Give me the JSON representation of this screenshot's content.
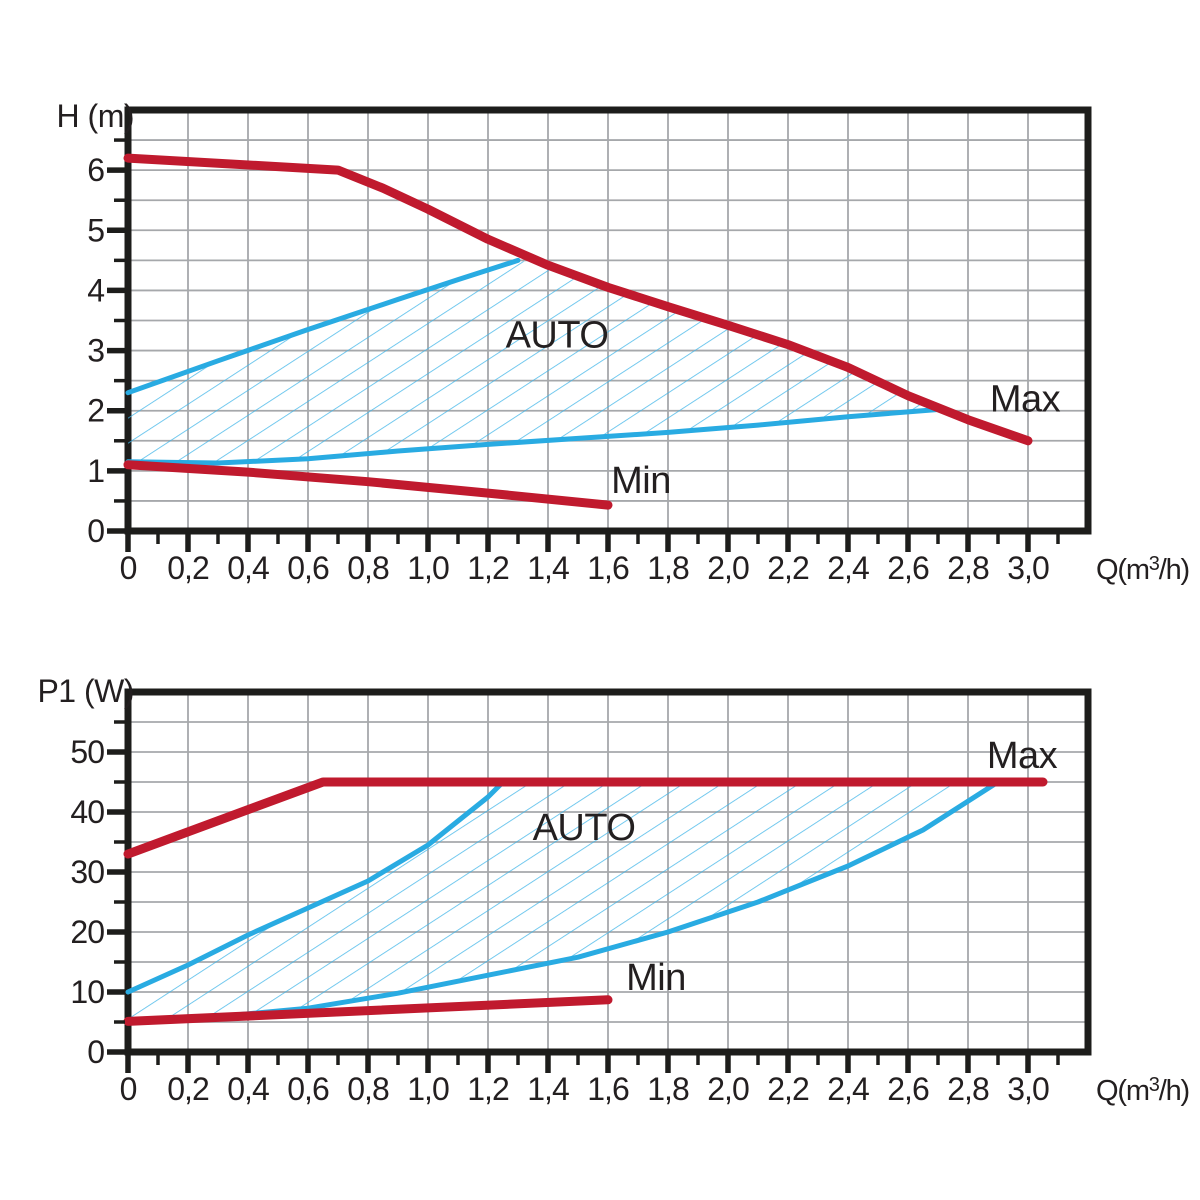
{
  "page": {
    "background": "#ffffff"
  },
  "colors": {
    "curve_red": "#c01a2e",
    "curve_blue": "#29abe2",
    "hatch_blue": "#3fb5e8",
    "grid": "#a6a8ab",
    "axis": "#1d1d1b",
    "text": "#231f20"
  },
  "chart_data": [
    {
      "type": "area",
      "name": "head-flow-chart",
      "ylabel": "H (m)",
      "xlabel_prefix": "Q(m",
      "xlabel_sup": "3",
      "xlabel_suffix": "/h)",
      "xlim": [
        0,
        3.2
      ],
      "ylim": [
        0,
        7
      ],
      "grid": true,
      "legend_position": "none",
      "x_major_ticks": [
        0,
        0.2,
        0.4,
        0.6,
        0.8,
        1.0,
        1.2,
        1.4,
        1.6,
        1.8,
        2.0,
        2.2,
        2.4,
        2.6,
        2.8,
        3.0
      ],
      "x_major_labels": [
        "0",
        "0,2",
        "0,4",
        "0,6",
        "0,8",
        "1,0",
        "1,2",
        "1,4",
        "1,6",
        "1,8",
        "2,0",
        "2,2",
        "2,4",
        "2,6",
        "2,8",
        "3,0"
      ],
      "x_minor_ticks": [
        0.1,
        0.3,
        0.5,
        0.7,
        0.9,
        1.1,
        1.3,
        1.5,
        1.7,
        1.9,
        2.1,
        2.3,
        2.5,
        2.7,
        2.9,
        3.1
      ],
      "y_major_ticks": [
        0,
        1,
        2,
        3,
        4,
        5,
        6
      ],
      "y_major_labels": [
        "0",
        "1",
        "2",
        "3",
        "4",
        "5",
        "6"
      ],
      "y_minor_ticks": [
        0.5,
        1.5,
        2.5,
        3.5,
        4.5,
        5.5,
        6.5
      ],
      "y_gridlines": [
        0.5,
        1,
        1.5,
        2,
        2.5,
        3,
        3.5,
        4,
        4.5,
        5,
        5.5,
        6,
        6.5
      ],
      "series": [
        {
          "name": "max-curve",
          "label": "Max",
          "color_key": "curve_red",
          "width": 9,
          "points": [
            [
              0,
              6.2
            ],
            [
              0.7,
              6.0
            ],
            [
              0.85,
              5.7
            ],
            [
              1.0,
              5.35
            ],
            [
              1.2,
              4.85
            ],
            [
              1.4,
              4.42
            ],
            [
              1.6,
              4.05
            ],
            [
              1.8,
              3.73
            ],
            [
              2.0,
              3.42
            ],
            [
              2.2,
              3.1
            ],
            [
              2.4,
              2.72
            ],
            [
              2.6,
              2.25
            ],
            [
              2.8,
              1.85
            ],
            [
              3.0,
              1.5
            ]
          ]
        },
        {
          "name": "min-curve",
          "label": "Min",
          "color_key": "curve_red",
          "width": 9,
          "points": [
            [
              0,
              1.1
            ],
            [
              0.4,
              0.98
            ],
            [
              0.8,
              0.82
            ],
            [
              1.2,
              0.63
            ],
            [
              1.6,
              0.43
            ]
          ]
        },
        {
          "name": "auto-upper-boundary",
          "label": "AUTO upper",
          "color_key": "curve_blue",
          "width": 5,
          "points": [
            [
              0,
              2.3
            ],
            [
              0.3,
              2.83
            ],
            [
              0.6,
              3.35
            ],
            [
              0.9,
              3.85
            ],
            [
              1.1,
              4.18
            ],
            [
              1.3,
              4.5
            ]
          ]
        },
        {
          "name": "auto-lower-boundary",
          "label": "AUTO lower",
          "color_key": "curve_blue",
          "width": 5,
          "points": [
            [
              0,
              1.15
            ],
            [
              0.3,
              1.13
            ],
            [
              0.6,
              1.2
            ],
            [
              0.9,
              1.33
            ],
            [
              1.2,
              1.44
            ],
            [
              1.5,
              1.54
            ],
            [
              1.8,
              1.64
            ],
            [
              2.1,
              1.76
            ],
            [
              2.4,
              1.9
            ],
            [
              2.7,
              2.02
            ]
          ]
        }
      ],
      "auto_region": {
        "label": "AUTO",
        "points": [
          [
            0,
            2.3
          ],
          [
            0.3,
            2.83
          ],
          [
            0.6,
            3.35
          ],
          [
            0.9,
            3.85
          ],
          [
            1.1,
            4.18
          ],
          [
            1.3,
            4.5
          ],
          [
            1.4,
            4.42
          ],
          [
            1.6,
            4.05
          ],
          [
            1.8,
            3.73
          ],
          [
            2.0,
            3.42
          ],
          [
            2.2,
            3.1
          ],
          [
            2.4,
            2.72
          ],
          [
            2.6,
            2.25
          ],
          [
            2.7,
            2.02
          ],
          [
            2.4,
            1.9
          ],
          [
            2.1,
            1.76
          ],
          [
            1.8,
            1.64
          ],
          [
            1.5,
            1.54
          ],
          [
            1.2,
            1.44
          ],
          [
            0.9,
            1.33
          ],
          [
            0.6,
            1.2
          ],
          [
            0.3,
            1.13
          ],
          [
            0,
            1.15
          ]
        ]
      },
      "annotations": [
        {
          "text": "AUTO",
          "x": 1.43,
          "y": 3.27
        },
        {
          "text": "Max",
          "x": 2.99,
          "y": 2.2
        },
        {
          "text": "Min",
          "x": 1.71,
          "y": 0.85
        }
      ]
    },
    {
      "type": "area",
      "name": "power-flow-chart",
      "ylabel": "P1 (W)",
      "xlabel_prefix": "Q(m",
      "xlabel_sup": "3",
      "xlabel_suffix": "/h)",
      "xlim": [
        0,
        3.2
      ],
      "ylim": [
        0,
        60
      ],
      "grid": true,
      "legend_position": "none",
      "x_major_ticks": [
        0,
        0.2,
        0.4,
        0.6,
        0.8,
        1.0,
        1.2,
        1.4,
        1.6,
        1.8,
        2.0,
        2.2,
        2.4,
        2.6,
        2.8,
        3.0
      ],
      "x_major_labels": [
        "0",
        "0,2",
        "0,4",
        "0,6",
        "0,8",
        "1,0",
        "1,2",
        "1,4",
        "1,6",
        "1,8",
        "2,0",
        "2,2",
        "2,4",
        "2,6",
        "2,8",
        "3,0"
      ],
      "x_minor_ticks": [
        0.1,
        0.3,
        0.5,
        0.7,
        0.9,
        1.1,
        1.3,
        1.5,
        1.7,
        1.9,
        2.1,
        2.3,
        2.5,
        2.7,
        2.9,
        3.1
      ],
      "y_major_ticks": [
        0,
        10,
        20,
        30,
        40,
        50
      ],
      "y_major_labels": [
        "0",
        "10",
        "20",
        "30",
        "40",
        "50"
      ],
      "y_minor_ticks": [
        5,
        15,
        25,
        35,
        45,
        55
      ],
      "y_gridlines": [
        5,
        10,
        15,
        20,
        25,
        30,
        35,
        40,
        45,
        50,
        55
      ],
      "series": [
        {
          "name": "max-curve",
          "label": "Max",
          "color_key": "curve_red",
          "width": 9,
          "points": [
            [
              0,
              33
            ],
            [
              0.65,
              45
            ],
            [
              3.05,
              45
            ]
          ]
        },
        {
          "name": "min-curve",
          "label": "Min",
          "color_key": "curve_red",
          "width": 9,
          "points": [
            [
              0,
              5.1
            ],
            [
              0.8,
              6.9
            ],
            [
              1.6,
              8.7
            ]
          ]
        },
        {
          "name": "auto-upper-boundary",
          "label": "AUTO upper",
          "color_key": "curve_blue",
          "width": 5,
          "points": [
            [
              0,
              10
            ],
            [
              0.2,
              14.5
            ],
            [
              0.4,
              19.5
            ],
            [
              0.6,
              24
            ],
            [
              0.8,
              28.5
            ],
            [
              1.0,
              34.5
            ],
            [
              1.1,
              38.5
            ],
            [
              1.2,
              42.5
            ],
            [
              1.25,
              45
            ]
          ]
        },
        {
          "name": "auto-lower-boundary",
          "label": "AUTO lower",
          "color_key": "curve_blue",
          "width": 5,
          "points": [
            [
              0,
              5.3
            ],
            [
              0.3,
              5.9
            ],
            [
              0.6,
              7.3
            ],
            [
              0.9,
              9.8
            ],
            [
              1.2,
              12.8
            ],
            [
              1.5,
              15.8
            ],
            [
              1.8,
              20
            ],
            [
              2.1,
              25
            ],
            [
              2.4,
              31
            ],
            [
              2.65,
              37
            ],
            [
              2.9,
              45
            ]
          ]
        }
      ],
      "auto_region": {
        "label": "AUTO",
        "points": [
          [
            0,
            10
          ],
          [
            0.2,
            14.5
          ],
          [
            0.4,
            19.5
          ],
          [
            0.6,
            24
          ],
          [
            0.8,
            28.5
          ],
          [
            1.0,
            34.5
          ],
          [
            1.1,
            38.5
          ],
          [
            1.2,
            42.5
          ],
          [
            1.25,
            45
          ],
          [
            2.9,
            45
          ],
          [
            2.65,
            37
          ],
          [
            2.4,
            31
          ],
          [
            2.1,
            25
          ],
          [
            1.8,
            20
          ],
          [
            1.5,
            15.8
          ],
          [
            1.2,
            12.8
          ],
          [
            0.9,
            9.8
          ],
          [
            0.6,
            7.3
          ],
          [
            0.3,
            5.9
          ],
          [
            0,
            5.3
          ]
        ]
      },
      "annotations": [
        {
          "text": "AUTO",
          "x": 1.52,
          "y": 37.5
        },
        {
          "text": "Max",
          "x": 2.98,
          "y": 49.5
        },
        {
          "text": "Min",
          "x": 1.76,
          "y": 12.5
        }
      ]
    }
  ]
}
